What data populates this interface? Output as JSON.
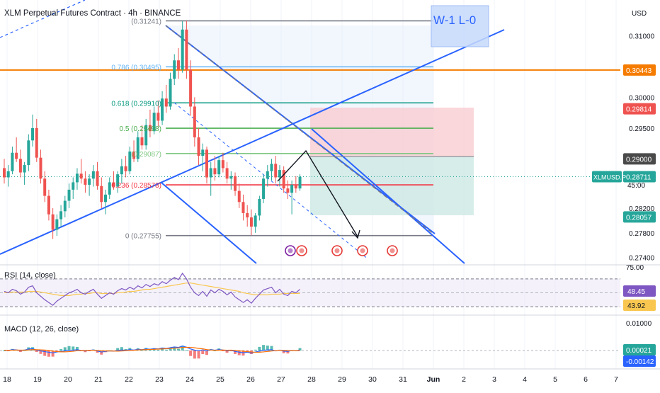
{
  "header": {
    "title": "XLM Perpetual Futures Contract · 4h · BINANCE",
    "currency": "USD"
  },
  "annotation_box": {
    "text": "W-1 L-0"
  },
  "colors": {
    "up": "#26a69a",
    "down": "#ef5350",
    "trend": "#2962ff",
    "orange": "#f57c00",
    "rsi": "#7e57c2",
    "rsi_ma": "#f9c74f",
    "macd_line": "#2962ff",
    "signal_line": "#ff6d00"
  },
  "price_axis": {
    "ticks": [
      "0.31000",
      "0.30000",
      "0.29500",
      "0.28200",
      "0.27800",
      "0.27400"
    ],
    "badges": [
      {
        "text": "0.30443",
        "color": "#f57c00",
        "value": 0.30443
      },
      {
        "text": "0.29814",
        "color": "#ef5350",
        "value": 0.29814
      },
      {
        "text": "0.29000",
        "color": "#4a4a4a",
        "value": 0.29
      },
      {
        "text": "0.28711",
        "color": "#26a69a",
        "value": 0.28711
      },
      {
        "text": "45:00",
        "color": "#26a69a",
        "value": 0.2858
      },
      {
        "text": "0.28057",
        "color": "#26a69a",
        "value": 0.28057
      }
    ],
    "symbol_label": "XLMUSD.P"
  },
  "fib_labels": [
    {
      "text": "(0.31241)",
      "value": 0.31241
    },
    {
      "text": "0.786 (0.30495)",
      "value": 0.30495
    },
    {
      "text": "0.618 (0.29910)",
      "value": 0.2991
    },
    {
      "text": "0.5 (0.29498)",
      "value": 0.29498
    },
    {
      "text": "(0.29087)",
      "value": 0.29087
    },
    {
      "text": "0.236 (0.28578)",
      "value": 0.28578
    },
    {
      "text": "0 (0.27755)",
      "value": 0.27755
    }
  ],
  "x_axis": {
    "labels": [
      "18",
      "19",
      "20",
      "21",
      "22",
      "23",
      "24",
      "25",
      "26",
      "27",
      "28",
      "29",
      "30",
      "31",
      "Jun",
      "2",
      "3",
      "4",
      "5",
      "6",
      "7"
    ]
  },
  "rsi_panel": {
    "label": "RSI (14, close)",
    "ticks": [
      "75.00"
    ],
    "badges": [
      {
        "text": "48.45",
        "color": "#7e57c2"
      },
      {
        "text": "43.92",
        "color": "#f9c74f"
      }
    ]
  },
  "macd_panel": {
    "label": "MACD (12, 26, close)",
    "ticks": [
      "0.01000"
    ],
    "badges": [
      {
        "text": "0.00021",
        "color": "#26a69a"
      },
      {
        "text": "-0.00142",
        "color": "#2962ff"
      }
    ]
  },
  "chart_data": {
    "type": "candlestick",
    "ylim": [
      0.2728,
      0.3158
    ],
    "x_date_range": [
      "18",
      "7"
    ],
    "candles": [
      [
        0.2885,
        0.29,
        0.286,
        0.287
      ],
      [
        0.287,
        0.289,
        0.2855,
        0.288
      ],
      [
        0.288,
        0.292,
        0.2875,
        0.291
      ],
      [
        0.291,
        0.2935,
        0.2895,
        0.29
      ],
      [
        0.29,
        0.2915,
        0.287,
        0.2878
      ],
      [
        0.2878,
        0.2895,
        0.2858,
        0.289
      ],
      [
        0.289,
        0.294,
        0.288,
        0.293
      ],
      [
        0.293,
        0.2972,
        0.292,
        0.295
      ],
      [
        0.295,
        0.2965,
        0.2895,
        0.2902
      ],
      [
        0.2902,
        0.2915,
        0.286,
        0.2868
      ],
      [
        0.2868,
        0.288,
        0.283,
        0.284
      ],
      [
        0.284,
        0.285,
        0.28,
        0.281
      ],
      [
        0.281,
        0.282,
        0.277,
        0.2785
      ],
      [
        0.2785,
        0.281,
        0.2775,
        0.2802
      ],
      [
        0.2802,
        0.2825,
        0.279,
        0.2815
      ],
      [
        0.2815,
        0.284,
        0.2805,
        0.2832
      ],
      [
        0.2832,
        0.286,
        0.282,
        0.285
      ],
      [
        0.285,
        0.287,
        0.2835,
        0.2862
      ],
      [
        0.2862,
        0.2885,
        0.285,
        0.2876
      ],
      [
        0.2876,
        0.29,
        0.286,
        0.2868
      ],
      [
        0.2868,
        0.288,
        0.2845,
        0.2858
      ],
      [
        0.2858,
        0.2875,
        0.284,
        0.2868
      ],
      [
        0.2868,
        0.289,
        0.2855,
        0.288
      ],
      [
        0.288,
        0.2895,
        0.285,
        0.2856
      ],
      [
        0.2856,
        0.287,
        0.282,
        0.283
      ],
      [
        0.283,
        0.285,
        0.281,
        0.2842
      ],
      [
        0.2842,
        0.287,
        0.2835,
        0.2862
      ],
      [
        0.2862,
        0.288,
        0.285,
        0.2855
      ],
      [
        0.2855,
        0.288,
        0.2845,
        0.2875
      ],
      [
        0.2875,
        0.29,
        0.286,
        0.2888
      ],
      [
        0.2888,
        0.2905,
        0.287,
        0.288
      ],
      [
        0.288,
        0.292,
        0.2875,
        0.2912
      ],
      [
        0.2912,
        0.293,
        0.2895,
        0.29
      ],
      [
        0.29,
        0.2945,
        0.2895,
        0.2935
      ],
      [
        0.2935,
        0.2955,
        0.2915,
        0.2922
      ],
      [
        0.2922,
        0.2965,
        0.2915,
        0.2955
      ],
      [
        0.2955,
        0.298,
        0.2935,
        0.2945
      ],
      [
        0.2945,
        0.2985,
        0.294,
        0.2975
      ],
      [
        0.2975,
        0.2995,
        0.295,
        0.2962
      ],
      [
        0.2962,
        0.301,
        0.2955,
        0.2998
      ],
      [
        0.2998,
        0.302,
        0.2975,
        0.2985
      ],
      [
        0.2985,
        0.304,
        0.298,
        0.303
      ],
      [
        0.303,
        0.307,
        0.302,
        0.306
      ],
      [
        0.306,
        0.308,
        0.303,
        0.3045
      ],
      [
        0.3045,
        0.3124,
        0.304,
        0.311
      ],
      [
        0.311,
        0.3124,
        0.303,
        0.3045
      ],
      [
        0.3045,
        0.306,
        0.297,
        0.2985
      ],
      [
        0.2985,
        0.3,
        0.292,
        0.2935
      ],
      [
        0.2935,
        0.295,
        0.289,
        0.2905
      ],
      [
        0.2905,
        0.2925,
        0.288,
        0.2915
      ],
      [
        0.2915,
        0.292,
        0.286,
        0.287
      ],
      [
        0.287,
        0.2895,
        0.284,
        0.2885
      ],
      [
        0.2885,
        0.2905,
        0.2865,
        0.2875
      ],
      [
        0.2875,
        0.2905,
        0.287,
        0.2898
      ],
      [
        0.2898,
        0.291,
        0.2878,
        0.2885
      ],
      [
        0.2885,
        0.2895,
        0.286,
        0.2868
      ],
      [
        0.2868,
        0.288,
        0.285,
        0.2872
      ],
      [
        0.2872,
        0.2878,
        0.284,
        0.2848
      ],
      [
        0.2848,
        0.286,
        0.282,
        0.283
      ],
      [
        0.283,
        0.2842,
        0.28,
        0.2812
      ],
      [
        0.2812,
        0.2825,
        0.279,
        0.2805
      ],
      [
        0.2805,
        0.2818,
        0.2776,
        0.279
      ],
      [
        0.279,
        0.2812,
        0.278,
        0.2808
      ],
      [
        0.2808,
        0.284,
        0.28,
        0.2835
      ],
      [
        0.2835,
        0.2875,
        0.2828,
        0.2868
      ],
      [
        0.2868,
        0.289,
        0.2855,
        0.288
      ],
      [
        0.288,
        0.29,
        0.2865,
        0.2892
      ],
      [
        0.2892,
        0.2905,
        0.286,
        0.287
      ],
      [
        0.287,
        0.289,
        0.2855,
        0.2882
      ],
      [
        0.2882,
        0.2888,
        0.2845,
        0.2852
      ],
      [
        0.2852,
        0.2865,
        0.2835,
        0.2845
      ],
      [
        0.2845,
        0.2865,
        0.281,
        0.2858
      ],
      [
        0.2858,
        0.2872,
        0.2845,
        0.2852
      ],
      [
        0.2852,
        0.2875,
        0.2848,
        0.2871
      ]
    ],
    "rsi": [
      52,
      50,
      55,
      53,
      48,
      51,
      58,
      60,
      50,
      45,
      40,
      36,
      32,
      38,
      42,
      46,
      50,
      52,
      55,
      50,
      48,
      52,
      55,
      48,
      42,
      46,
      50,
      48,
      53,
      56,
      54,
      58,
      55,
      60,
      57,
      62,
      59,
      63,
      61,
      66,
      63,
      68,
      72,
      69,
      78,
      70,
      58,
      50,
      46,
      52,
      45,
      54,
      50,
      55,
      52,
      47,
      51,
      44,
      40,
      36,
      40,
      35,
      42,
      48,
      54,
      56,
      58,
      50,
      55,
      48,
      46,
      52,
      50,
      55
    ],
    "rsi_ma": [
      50,
      50,
      51,
      51,
      51,
      51,
      52,
      52,
      52,
      51,
      50,
      49,
      48,
      47,
      46,
      46,
      46,
      47,
      48,
      48,
      49,
      49,
      50,
      50,
      49,
      49,
      49,
      49,
      50,
      50,
      51,
      52,
      52,
      53,
      54,
      55,
      55,
      56,
      57,
      58,
      59,
      60,
      61,
      62,
      63,
      64,
      64,
      63,
      62,
      61,
      60,
      59,
      58,
      57,
      56,
      55,
      54,
      53,
      52,
      50,
      49,
      48,
      47,
      47,
      47,
      47,
      48,
      48,
      48,
      49,
      49,
      49,
      49,
      49
    ]
  }
}
